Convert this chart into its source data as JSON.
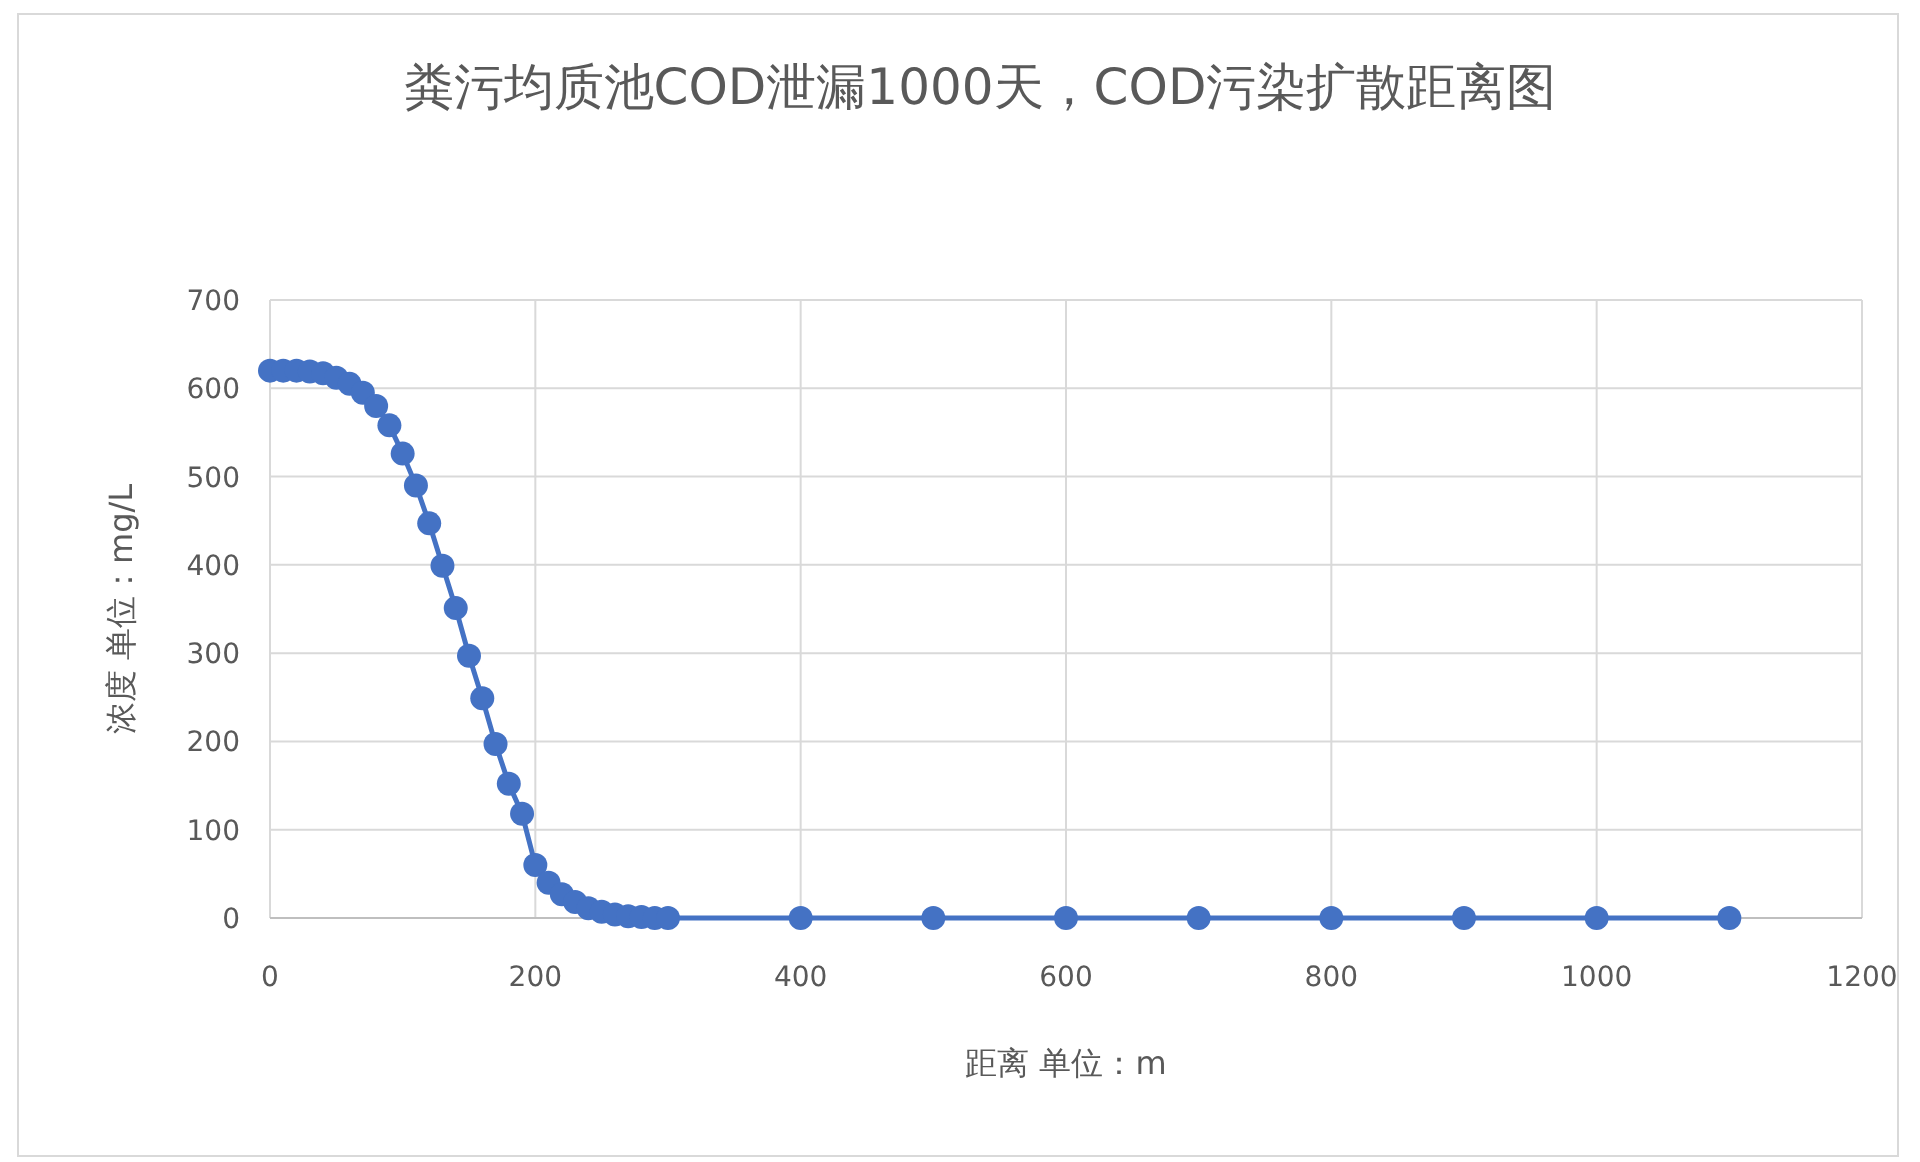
{
  "chart_data": {
    "type": "line",
    "title": "粪污均质池COD泄漏1000天，COD污染扩散距离图",
    "xlabel": "距离 单位：m",
    "ylabel": "浓度 单位：mg/L",
    "x": [
      0,
      10,
      20,
      30,
      40,
      50,
      60,
      70,
      80,
      90,
      100,
      110,
      120,
      130,
      140,
      150,
      160,
      170,
      180,
      190,
      200,
      210,
      220,
      230,
      240,
      250,
      260,
      270,
      280,
      290,
      300,
      400,
      500,
      600,
      700,
      800,
      900,
      1000,
      1100
    ],
    "series": [
      {
        "color": "#4472c4",
        "values": [
          620,
          620,
          620,
          619,
          617,
          612,
          605,
          595,
          580,
          558,
          526,
          490,
          447,
          399,
          351,
          297,
          249,
          197,
          152,
          118,
          60,
          40,
          27,
          18,
          11,
          7,
          4,
          2,
          1,
          0,
          0,
          0,
          0,
          0,
          0,
          0,
          0,
          0,
          0
        ]
      }
    ],
    "xlim": [
      0,
      1200
    ],
    "ylim": [
      0,
      700
    ],
    "xticks": [
      0,
      200,
      400,
      600,
      800,
      1000,
      1200
    ],
    "yticks": [
      0,
      100,
      200,
      300,
      400,
      500,
      600,
      700
    ],
    "grid": true,
    "marker": "circle",
    "line_style": "solid"
  }
}
